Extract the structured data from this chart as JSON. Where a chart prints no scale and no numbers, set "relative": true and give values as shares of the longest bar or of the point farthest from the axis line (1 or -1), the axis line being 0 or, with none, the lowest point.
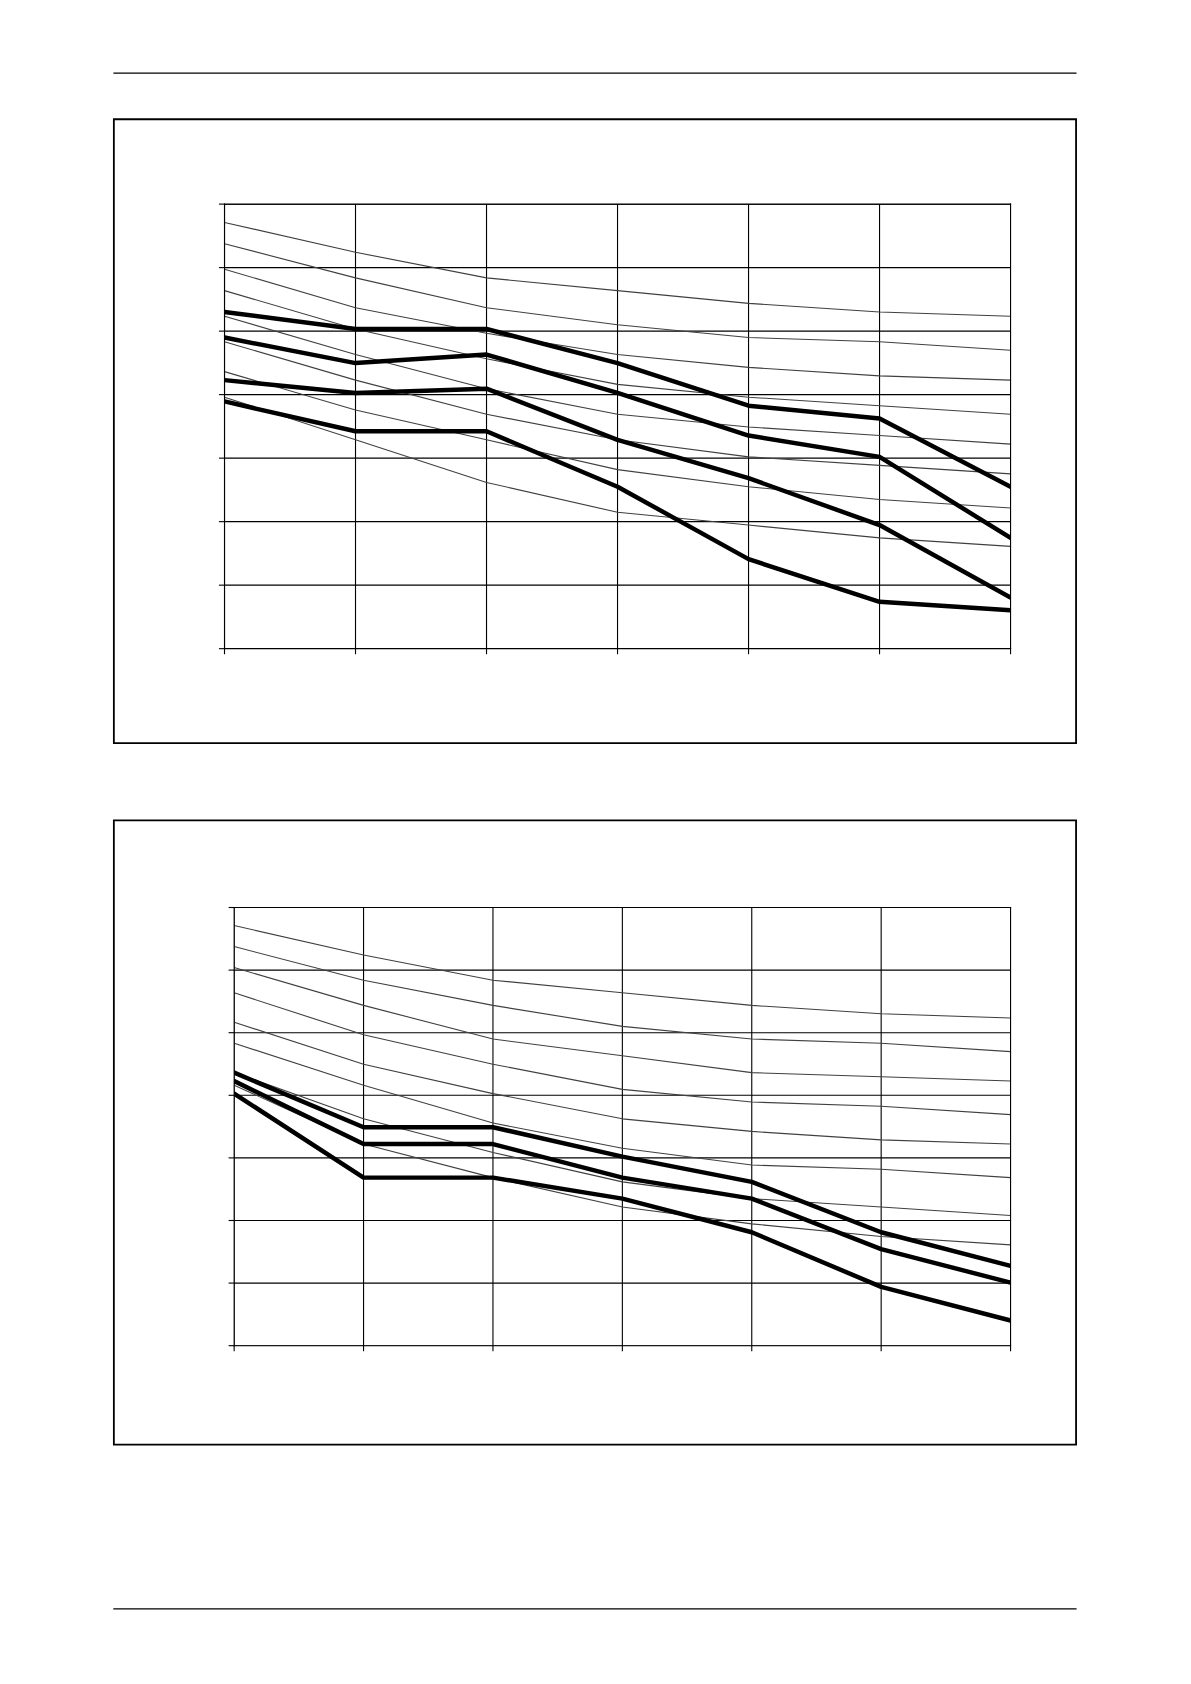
{
  "chart_data": [
    {
      "type": "line",
      "relative": true,
      "grid": true,
      "marker": "none",
      "line_style": "solid",
      "categories": [
        null,
        null,
        null,
        null,
        null,
        null,
        null
      ],
      "series": [
        {
          "color": "#404040",
          "values": [
            1.0,
            0.93,
            0.87,
            0.84,
            0.81,
            0.79,
            0.78
          ]
        },
        {
          "color": "#404040",
          "values": [
            0.95,
            0.87,
            0.8,
            0.76,
            0.73,
            0.72,
            0.7
          ]
        },
        {
          "color": "#404040",
          "values": [
            0.89,
            0.8,
            0.74,
            0.69,
            0.66,
            0.64,
            0.63
          ]
        },
        {
          "color": "#404040",
          "values": [
            0.84,
            0.75,
            0.68,
            0.62,
            0.59,
            0.57,
            0.55
          ]
        },
        {
          "color": "#404040",
          "values": [
            0.78,
            0.69,
            0.61,
            0.55,
            0.52,
            0.5,
            0.48
          ]
        },
        {
          "color": "#404040",
          "values": [
            0.72,
            0.63,
            0.55,
            0.49,
            0.45,
            0.43,
            0.41
          ]
        },
        {
          "color": "#404040",
          "values": [
            0.65,
            0.56,
            0.49,
            0.42,
            0.38,
            0.35,
            0.33
          ]
        },
        {
          "color": "#404040",
          "values": [
            0.59,
            0.49,
            0.39,
            0.32,
            0.29,
            0.26,
            0.24
          ]
        },
        {
          "color": "#000000",
          "values": [
            0.79,
            0.75,
            0.75,
            0.67,
            0.57,
            0.54,
            0.38
          ]
        },
        {
          "color": "#000000",
          "values": [
            0.73,
            0.67,
            0.69,
            0.6,
            0.5,
            0.45,
            0.26
          ]
        },
        {
          "color": "#000000",
          "values": [
            0.63,
            0.6,
            0.61,
            0.49,
            0.4,
            0.29,
            0.12
          ]
        },
        {
          "color": "#000000",
          "values": [
            0.58,
            0.51,
            0.51,
            0.38,
            0.21,
            0.11,
            0.09
          ]
        }
      ]
    },
    {
      "type": "line",
      "relative": true,
      "grid": true,
      "marker": "none",
      "line_style": "solid",
      "categories": [
        null,
        null,
        null,
        null,
        null,
        null,
        null
      ],
      "series": [
        {
          "color": "#404040",
          "values": [
            1.0,
            0.93,
            0.87,
            0.84,
            0.81,
            0.79,
            0.78
          ]
        },
        {
          "color": "#404040",
          "values": [
            0.95,
            0.87,
            0.81,
            0.76,
            0.73,
            0.72,
            0.7
          ]
        },
        {
          "color": "#404040",
          "values": [
            0.9,
            0.81,
            0.73,
            0.69,
            0.65,
            0.64,
            0.63
          ]
        },
        {
          "color": "#404040",
          "values": [
            0.84,
            0.74,
            0.67,
            0.61,
            0.58,
            0.57,
            0.55
          ]
        },
        {
          "color": "#404040",
          "values": [
            0.77,
            0.67,
            0.6,
            0.54,
            0.51,
            0.49,
            0.48
          ]
        },
        {
          "color": "#404040",
          "values": [
            0.72,
            0.62,
            0.53,
            0.47,
            0.43,
            0.42,
            0.4
          ]
        },
        {
          "color": "#404040",
          "values": [
            0.65,
            0.54,
            0.46,
            0.39,
            0.35,
            0.33,
            0.31
          ]
        },
        {
          "color": "#404040",
          "values": [
            0.62,
            0.48,
            0.4,
            0.33,
            0.29,
            0.26,
            0.24
          ]
        },
        {
          "color": "#000000",
          "values": [
            0.65,
            0.52,
            0.52,
            0.45,
            0.39,
            0.27,
            0.19
          ]
        },
        {
          "color": "#000000",
          "values": [
            0.63,
            0.48,
            0.48,
            0.4,
            0.35,
            0.23,
            0.15
          ]
        },
        {
          "color": "#000000",
          "values": [
            0.6,
            0.4,
            0.4,
            0.35,
            0.27,
            0.14,
            0.06
          ]
        }
      ]
    }
  ]
}
